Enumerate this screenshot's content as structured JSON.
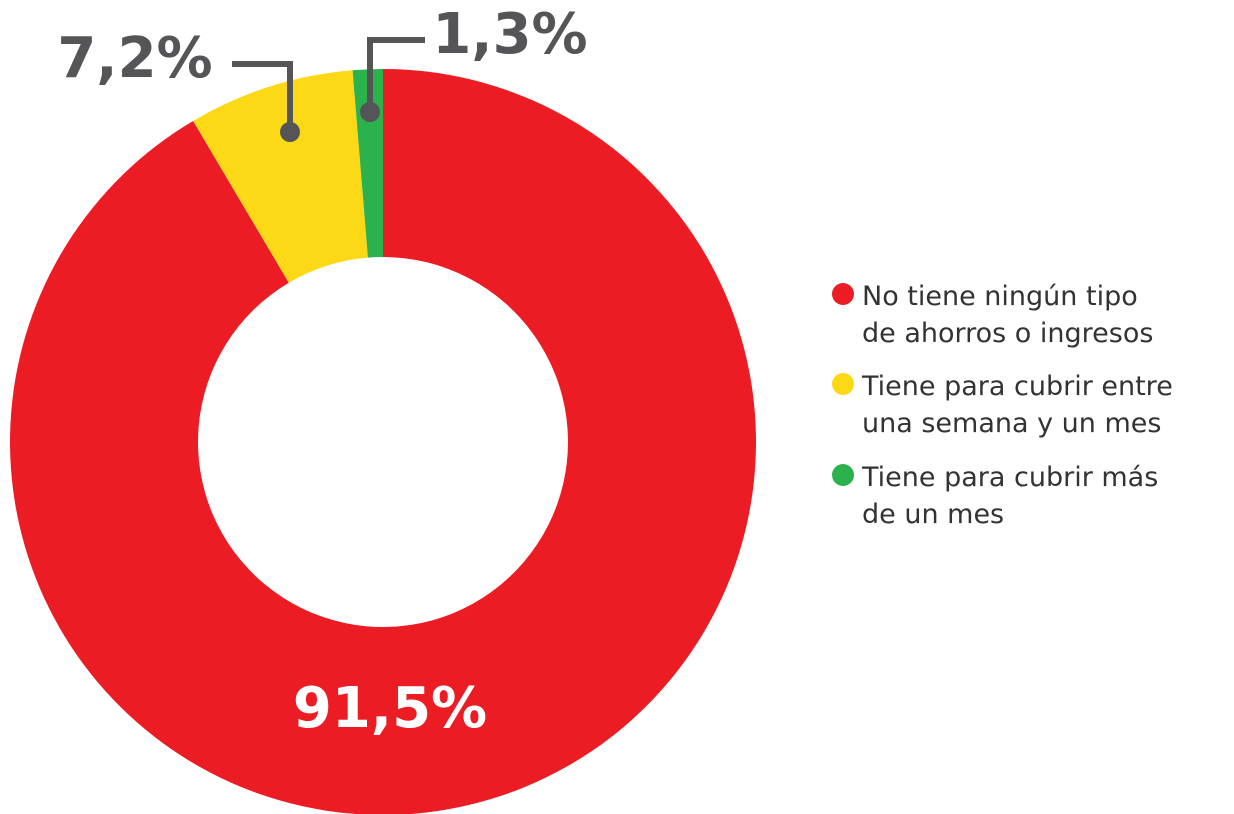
{
  "chart_data": {
    "type": "donut",
    "categories": [
      "No tiene ningún tipo de ahorros o ingresos",
      "Tiene para cubrir entre una semana y un mes",
      "Tiene para cubrir más de un mes"
    ],
    "values": [
      91.5,
      7.2,
      1.3
    ],
    "value_labels": [
      "91,5%",
      "7,2%",
      "1,3%"
    ],
    "colors": [
      "#ec1c24",
      "#fcd917",
      "#2bb24c"
    ],
    "legend": "right"
  }
}
